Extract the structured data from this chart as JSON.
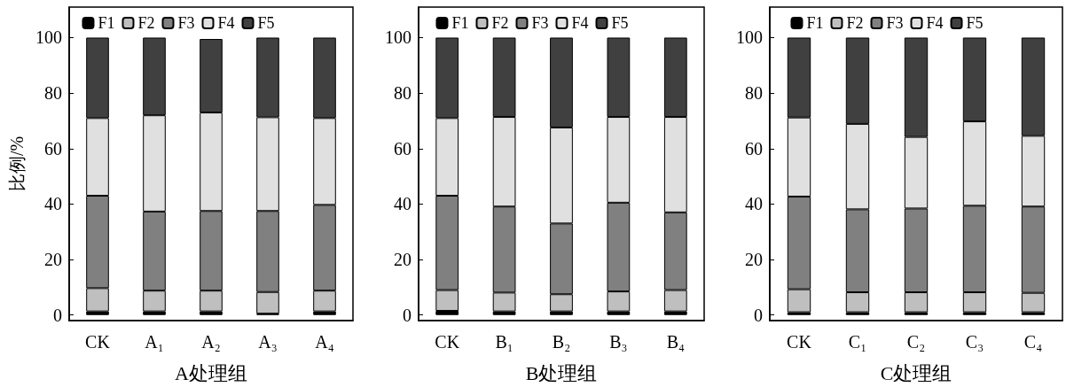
{
  "chart_data": [
    {
      "type": "bar",
      "stacked": true,
      "xlabel": "A处理组",
      "ylabel": "比例/%",
      "categories": [
        "CK",
        "A₁",
        "A₂",
        "A₃",
        "A₄"
      ],
      "ylim": [
        -2,
        111
      ],
      "yticks": [
        0,
        20,
        40,
        60,
        80,
        100
      ],
      "grid": false,
      "legend": "top",
      "series": [
        {
          "name": "F1",
          "color": "#000000",
          "values": [
            1.3,
            1.3,
            1.3,
            0.5,
            1.3
          ]
        },
        {
          "name": "F2",
          "color": "#bfbfbf",
          "values": [
            8.4,
            7.5,
            7.5,
            7.8,
            7.5
          ]
        },
        {
          "name": "F3",
          "color": "#808080",
          "values": [
            33.3,
            28.5,
            28.7,
            29.2,
            30.9
          ]
        },
        {
          "name": "F4",
          "color": "#e0e0e0",
          "values": [
            28,
            34.7,
            35.5,
            33.8,
            31.3
          ]
        },
        {
          "name": "F5",
          "color": "#404040",
          "values": [
            29,
            28,
            26.5,
            28.7,
            29
          ]
        }
      ]
    },
    {
      "type": "bar",
      "stacked": true,
      "xlabel": "B处理组",
      "categories": [
        "CK",
        "B₁",
        "B₂",
        "B₃",
        "B₄"
      ],
      "ylim": [
        -2,
        111
      ],
      "yticks": [
        0,
        20,
        40,
        60,
        80,
        100
      ],
      "grid": false,
      "legend": "top",
      "series": [
        {
          "name": "F1",
          "color": "#000000",
          "values": [
            1.5,
            1.3,
            1.3,
            1.3,
            1.3
          ]
        },
        {
          "name": "F2",
          "color": "#bfbfbf",
          "values": [
            7.5,
            6.8,
            6.2,
            7.2,
            7.7
          ]
        },
        {
          "name": "F3",
          "color": "#808080",
          "values": [
            34,
            31,
            25.5,
            32,
            28
          ]
        },
        {
          "name": "F4",
          "color": "#e0e0e0",
          "values": [
            28,
            32.3,
            34.6,
            30.9,
            34.4
          ]
        },
        {
          "name": "F5",
          "color": "#404040",
          "values": [
            29,
            28.6,
            32.4,
            28.6,
            28.6
          ]
        }
      ]
    },
    {
      "type": "bar",
      "stacked": true,
      "xlabel": "C处理组",
      "categories": [
        "CK",
        "C₁",
        "C₂",
        "C₃",
        "C₄"
      ],
      "ylim": [
        -2,
        111
      ],
      "yticks": [
        0,
        20,
        40,
        60,
        80,
        100
      ],
      "grid": false,
      "legend": "top",
      "series": [
        {
          "name": "F1",
          "color": "#000000",
          "values": [
            1,
            1,
            1,
            1,
            1
          ]
        },
        {
          "name": "F2",
          "color": "#bfbfbf",
          "values": [
            8.3,
            7.2,
            7.2,
            7.2,
            7
          ]
        },
        {
          "name": "F3",
          "color": "#808080",
          "values": [
            33.4,
            29.9,
            30.2,
            31.2,
            31.1
          ]
        },
        {
          "name": "F4",
          "color": "#e0e0e0",
          "values": [
            28.5,
            30.8,
            25.8,
            30.4,
            25.5
          ]
        },
        {
          "name": "F5",
          "color": "#404040",
          "values": [
            28.8,
            31.1,
            35.8,
            30.2,
            35.4
          ]
        }
      ]
    }
  ]
}
